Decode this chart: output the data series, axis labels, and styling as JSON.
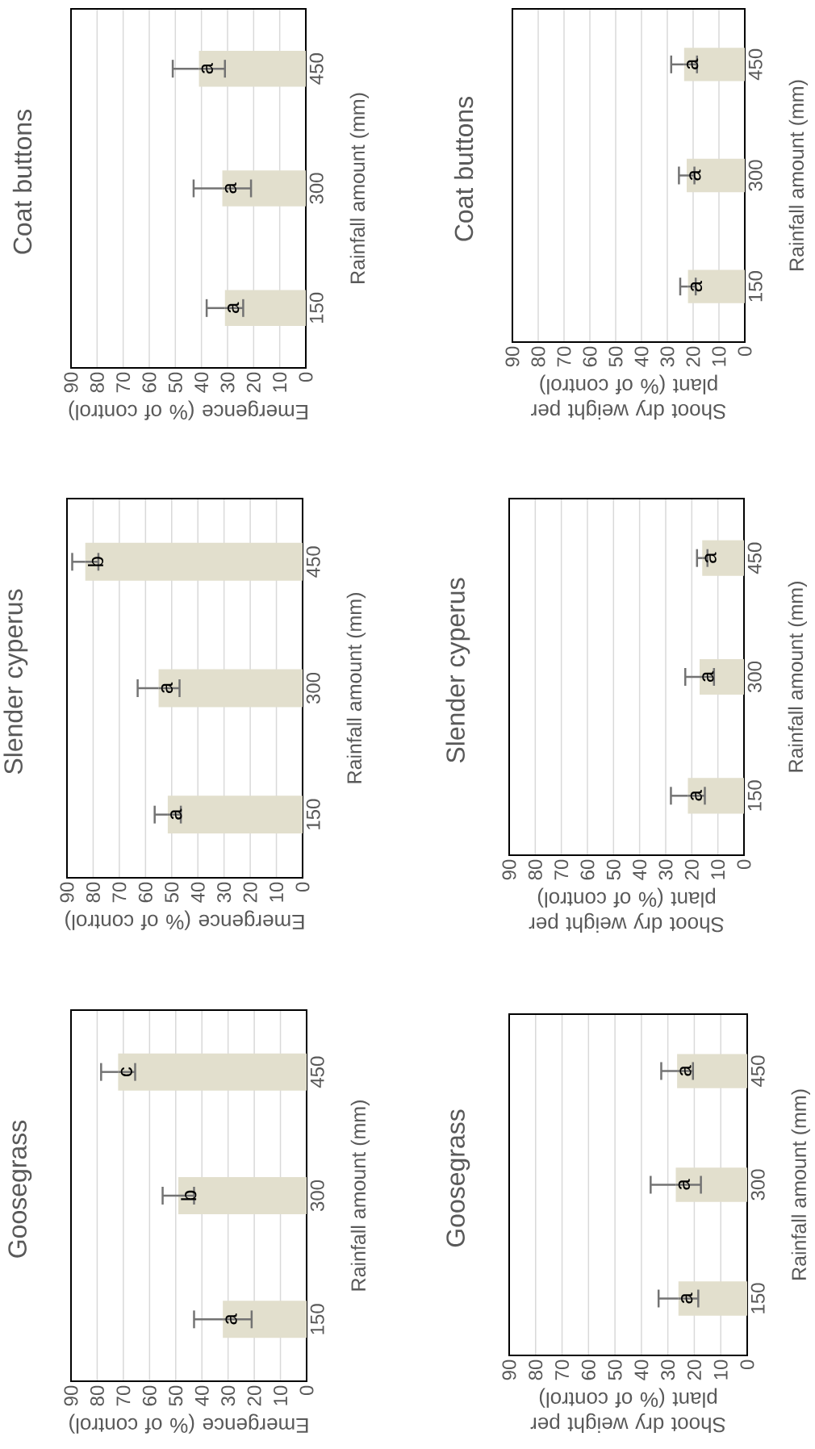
{
  "chart_data": [
    {
      "type": "bar",
      "orientation": "horizontal",
      "title": "Coat buttons",
      "ylabel": "Rainfall amount (mm)",
      "xlabel": "Emergence (% of control)",
      "categories": [
        "450",
        "300",
        "150"
      ],
      "values": [
        41,
        32,
        31
      ],
      "errors": [
        10,
        11,
        7
      ],
      "value_labels": [
        "a",
        "a",
        "a"
      ],
      "color": "#e2dfcd",
      "xlim": [
        90,
        0
      ],
      "xticks": [
        0,
        10,
        20,
        30,
        40,
        50,
        60,
        70,
        80,
        90
      ],
      "grid": "x"
    },
    {
      "type": "bar",
      "orientation": "horizontal",
      "title": "Coat buttons",
      "ylabel": "Rainfall amount (mm)",
      "xlabel": "Shoot dry weight per plant (% of control)",
      "categories": [
        "450",
        "300",
        "150"
      ],
      "values": [
        23.5,
        22.5,
        22
      ],
      "errors": [
        5,
        3,
        3
      ],
      "value_labels": [
        "a",
        "a",
        "a"
      ],
      "color": "#e2dfcd",
      "xlim": [
        90,
        0
      ],
      "xticks": [
        0,
        10,
        20,
        30,
        40,
        50,
        60,
        70,
        80,
        90
      ],
      "grid": "x"
    },
    {
      "type": "bar",
      "orientation": "horizontal",
      "title": "Slender cyperus",
      "ylabel": "Rainfall amount (mm)",
      "xlabel": "Emergence (% of control)",
      "categories": [
        "450",
        "300",
        "150"
      ],
      "values": [
        83,
        55,
        51.5
      ],
      "errors": [
        5,
        8,
        5
      ],
      "value_labels": [
        "b",
        "a",
        "a"
      ],
      "color": "#e2dfcd",
      "xlim": [
        90,
        0
      ],
      "xticks": [
        0,
        10,
        20,
        30,
        40,
        50,
        60,
        70,
        80,
        90
      ],
      "grid": "x"
    },
    {
      "type": "bar",
      "orientation": "horizontal",
      "title": "Slender cyperus",
      "ylabel": "Rainfall amount (mm)",
      "xlabel": "Shoot dry weight per plant (% of control)",
      "categories": [
        "450",
        "300",
        "150"
      ],
      "values": [
        16,
        17,
        21.5
      ],
      "errors": [
        2,
        5.5,
        6.5
      ],
      "value_labels": [
        "a",
        "a",
        "a"
      ],
      "color": "#e2dfcd",
      "xlim": [
        90,
        0
      ],
      "xticks": [
        0,
        10,
        20,
        30,
        40,
        50,
        60,
        70,
        80,
        90
      ],
      "grid": "x"
    },
    {
      "type": "bar",
      "orientation": "horizontal",
      "title": "Goosegrass",
      "ylabel": "Rainfall amount (mm)",
      "xlabel": "Emergence (% of control)",
      "categories": [
        "450",
        "300",
        "150"
      ],
      "values": [
        72,
        49,
        32
      ],
      "errors": [
        6.5,
        6,
        11
      ],
      "value_labels": [
        "c",
        "b",
        "a"
      ],
      "color": "#e2dfcd",
      "xlim": [
        90,
        0
      ],
      "xticks": [
        0,
        10,
        20,
        30,
        40,
        50,
        60,
        70,
        80,
        90
      ],
      "grid": "x"
    },
    {
      "type": "bar",
      "orientation": "horizontal",
      "title": "Goosegrass",
      "ylabel": "Rainfall amount (mm)",
      "xlabel": "Shoot dry weight per plant (% of control)",
      "categories": [
        "450",
        "300",
        "150"
      ],
      "values": [
        26.5,
        27,
        26
      ],
      "errors": [
        6,
        9.5,
        7.5
      ],
      "value_labels": [
        "a",
        "a",
        "a"
      ],
      "color": "#e2dfcd",
      "xlim": [
        90,
        0
      ],
      "xticks": [
        0,
        10,
        20,
        30,
        40,
        50,
        60,
        70,
        80,
        90
      ],
      "grid": "x"
    }
  ]
}
